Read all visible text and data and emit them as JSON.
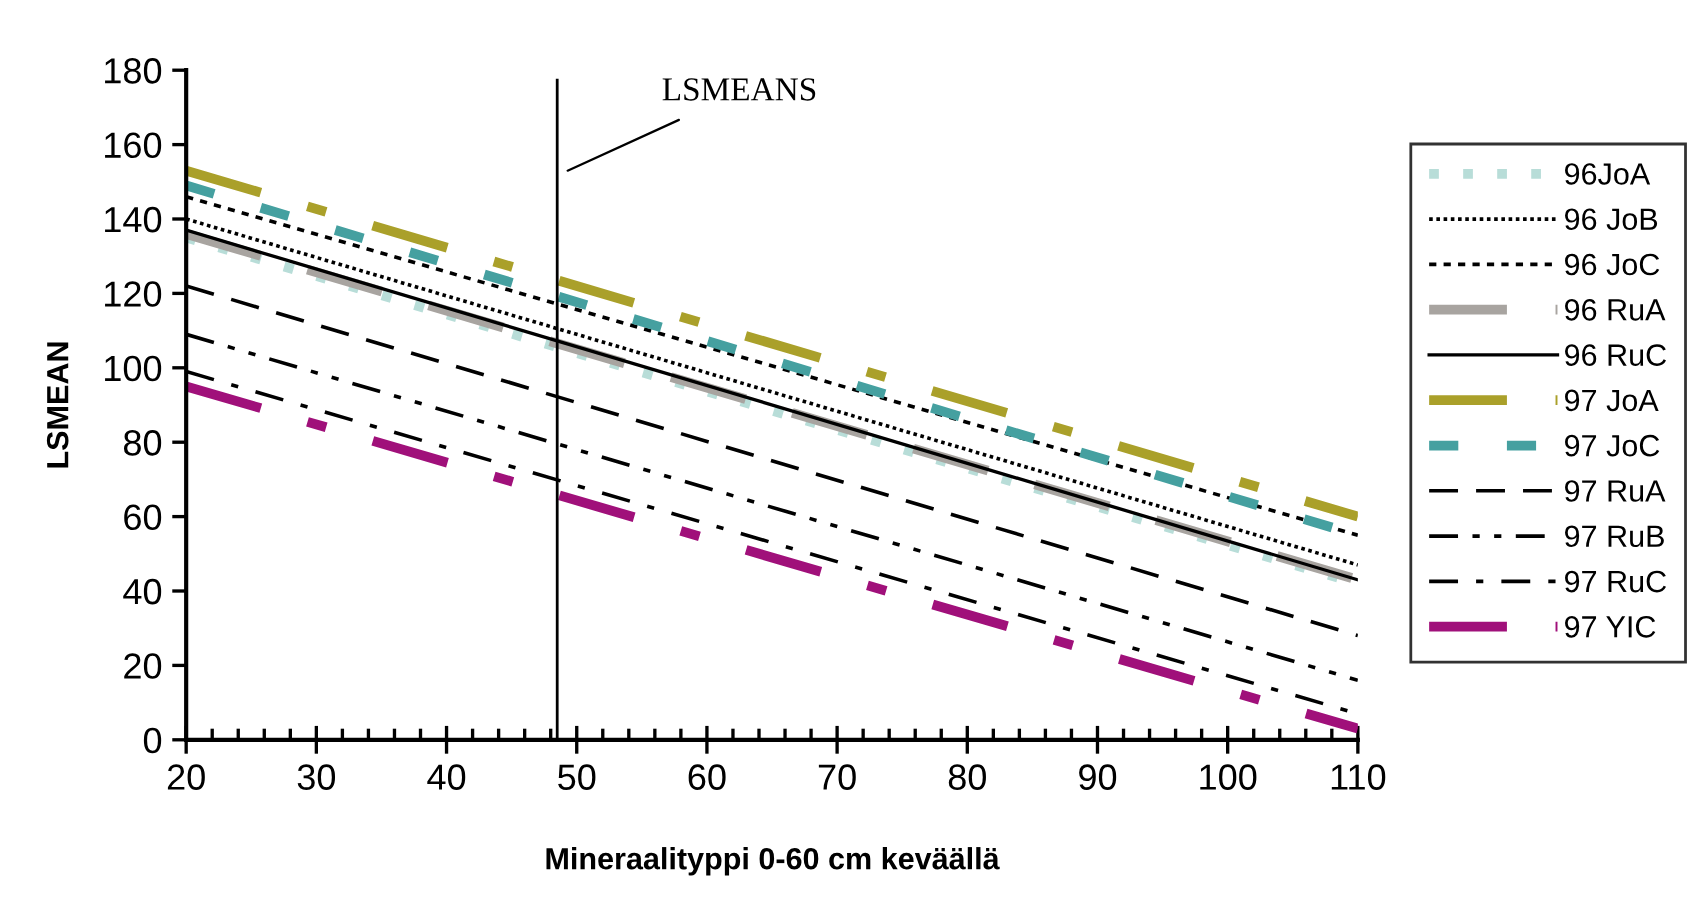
{
  "chart_data": {
    "type": "line",
    "xlabel": "Mineraalityppi 0-60 cm keväällä",
    "ylabel": "LSMEAN",
    "x": [
      20,
      110
    ],
    "series": [
      {
        "name": "96JoA",
        "color": "#b8ddd8",
        "line_style": "dotted",
        "values": [
          135,
          42
        ]
      },
      {
        "name": "96 JoB",
        "color": "#000000",
        "line_style": "densedot",
        "values": [
          140,
          47
        ]
      },
      {
        "name": "96 JoC",
        "color": "#000000",
        "line_style": "dashed",
        "values": [
          146,
          55
        ]
      },
      {
        "name": "96 RuA",
        "color": "#a8a4a0",
        "line_style": "longdash",
        "values": [
          136,
          43
        ]
      },
      {
        "name": "96 RuC",
        "color": "#000000",
        "line_style": "solid",
        "values": [
          137,
          43
        ]
      },
      {
        "name": "97 JoA",
        "color": "#aaa02a",
        "line_style": "dashdot",
        "values": [
          153,
          60
        ]
      },
      {
        "name": "97 JoC",
        "color": "#45a0a0",
        "line_style": "sparsedash",
        "values": [
          149,
          55
        ]
      },
      {
        "name": "97 RuA",
        "color": "#000000",
        "line_style": "longdash",
        "values": [
          122,
          28
        ]
      },
      {
        "name": "97 RuB",
        "color": "#000000",
        "line_style": "dashdotdot",
        "values": [
          109,
          16
        ]
      },
      {
        "name": "97 RuC",
        "color": "#000000",
        "line_style": "dashdot",
        "values": [
          99,
          7
        ]
      },
      {
        "name": "97 YIC",
        "color": "#a0107a",
        "line_style": "dashdot",
        "values": [
          95,
          3
        ]
      }
    ],
    "xlim": [
      20,
      110
    ],
    "xticks": [
      20,
      30,
      40,
      50,
      60,
      70,
      80,
      90,
      100,
      110
    ],
    "ylim": [
      0,
      180
    ],
    "yticks": [
      0,
      20,
      40,
      60,
      80,
      100,
      120,
      140,
      160,
      180
    ],
    "ref_lines": [
      {
        "axis": "x",
        "value": 48.5,
        "label": "LSMEANS",
        "color": "#000000"
      }
    ],
    "grid": false,
    "legend": "right",
    "marker": "none"
  }
}
